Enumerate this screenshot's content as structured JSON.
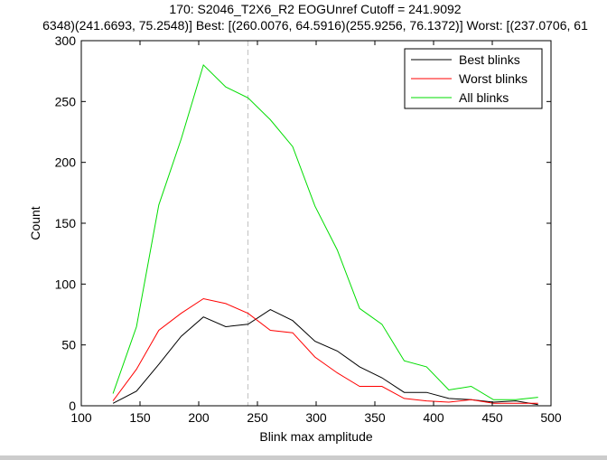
{
  "figure": {
    "title_line1": "170: S2046_T2X6_R2 EOGUnref Cutoff = 241.9092",
    "title_line2": "6348)(241.6693, 75.2548)] Best: [(260.0076, 64.5916)(255.9256, 76.1372)] Worst: [(237.0706, 61"
  },
  "chart_data": {
    "type": "line",
    "title": "170: S2046_T2X6_R2 EOGUnref Cutoff = 241.9092",
    "xlabel": "Blink max amplitude",
    "ylabel": "Count",
    "xlim": [
      100,
      500
    ],
    "ylim": [
      0,
      300
    ],
    "xticks": [
      100,
      150,
      200,
      250,
      300,
      350,
      400,
      450,
      500
    ],
    "yticks": [
      0,
      50,
      100,
      150,
      200,
      250,
      300
    ],
    "cutoff": 241.9092,
    "grid": false,
    "legend_position": "top-right",
    "x": [
      127,
      147,
      166,
      185,
      204,
      223,
      242,
      261,
      280,
      299,
      318,
      337,
      356,
      375,
      394,
      413,
      432,
      451,
      470,
      489
    ],
    "series": [
      {
        "name": "Best blinks",
        "color": "#000000",
        "values": [
          2,
          12,
          34,
          57,
          73,
          65,
          67,
          79,
          70,
          53,
          45,
          32,
          23,
          11,
          11,
          6,
          5,
          3,
          4,
          1
        ]
      },
      {
        "name": "Worst blinks",
        "color": "#ff0000",
        "values": [
          4,
          30,
          62,
          76,
          88,
          84,
          76,
          62,
          60,
          40,
          27,
          16,
          16,
          6,
          4,
          3,
          5,
          2,
          2,
          2
        ]
      },
      {
        "name": "All blinks",
        "color": "#00dd00",
        "values": [
          10,
          65,
          165,
          219,
          280,
          262,
          253,
          235,
          213,
          164,
          128,
          80,
          67,
          37,
          32,
          13,
          16,
          5,
          5,
          7
        ]
      }
    ]
  }
}
